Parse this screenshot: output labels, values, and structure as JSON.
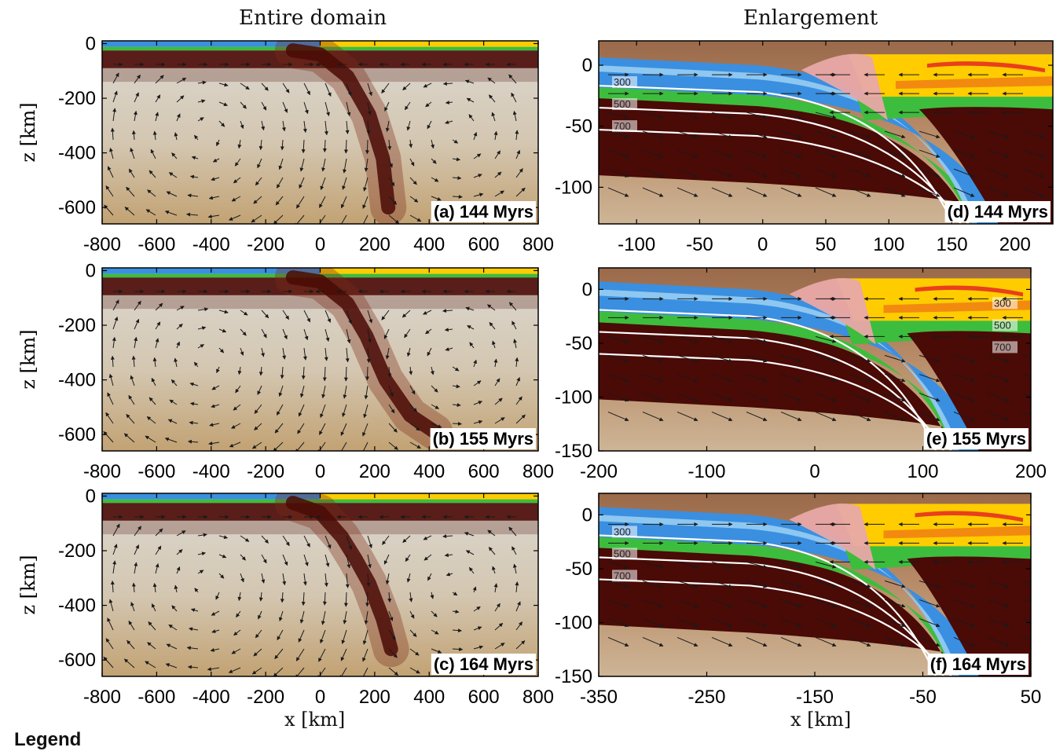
{
  "figure": {
    "col_titles": [
      "Entire domain",
      "Enlargement"
    ],
    "xlabel_left": "x [km]",
    "xlabel_right": "x [km]",
    "ylabel": "z [km]",
    "legend_heading": "Legend"
  },
  "colors": {
    "mantle_light": "#d8d4cc",
    "mantle_mid": "#c9b08a",
    "mantle_dark": "#a87a55",
    "lithosphere": "#4a0a06",
    "crust_blue": "#3a8fe0",
    "crust_lightblue": "#8ec7f0",
    "crust_darkblue": "#143d9c",
    "sediment_green": "#3dbd3d",
    "upper_yellow": "#ffcc00",
    "upper_orange": "#f28a10",
    "upper_red": "#e8401c",
    "melange_pink": "#e8a8a8",
    "isotherm": "#ffffff",
    "arrow": "#1a1a1a"
  },
  "chart_data": [
    {
      "type": "heatmap",
      "panel": "left",
      "label": "(a) 144 Myrs",
      "xlim": [
        -800,
        800
      ],
      "ylim": [
        -660,
        10
      ],
      "xticks": [
        -800,
        -600,
        -400,
        -200,
        0,
        200,
        400,
        600,
        800
      ],
      "yticks": [
        0,
        -200,
        -400,
        -600
      ],
      "slab": [
        [
          -100,
          -25
        ],
        [
          0,
          -40
        ],
        [
          100,
          -120
        ],
        [
          180,
          -260
        ],
        [
          230,
          -420
        ],
        [
          250,
          -600
        ]
      ]
    },
    {
      "type": "heatmap",
      "panel": "left",
      "label": "(b) 155 Myrs",
      "xlim": [
        -800,
        800
      ],
      "ylim": [
        -660,
        10
      ],
      "xticks": [
        -800,
        -600,
        -400,
        -200,
        0,
        200,
        400,
        600,
        800
      ],
      "yticks": [
        0,
        -200,
        -400,
        -600
      ],
      "slab": [
        [
          -100,
          -25
        ],
        [
          0,
          -40
        ],
        [
          100,
          -120
        ],
        [
          170,
          -240
        ],
        [
          240,
          -400
        ],
        [
          330,
          -530
        ],
        [
          420,
          -590
        ]
      ]
    },
    {
      "type": "heatmap",
      "panel": "left",
      "label": "(c) 164 Myrs",
      "xlim": [
        -800,
        800
      ],
      "ylim": [
        -660,
        10
      ],
      "xticks": [
        -800,
        -600,
        -400,
        -200,
        0,
        200,
        400,
        600,
        800
      ],
      "yticks": [
        0,
        -200,
        -400,
        -600
      ],
      "slab": [
        [
          -100,
          -25
        ],
        [
          0,
          -60
        ],
        [
          80,
          -150
        ],
        [
          130,
          -230
        ],
        [
          180,
          -320
        ],
        [
          230,
          -450
        ],
        [
          260,
          -560
        ]
      ]
    },
    {
      "type": "heatmap",
      "panel": "right",
      "label": "(d) 144 Myrs",
      "xlim": [
        -130,
        230
      ],
      "ylim": [
        -130,
        20
      ],
      "xticks": [
        -100,
        -50,
        0,
        50,
        100,
        150,
        200
      ],
      "yticks": [
        0,
        -50,
        -100
      ],
      "isotherm_labels": [
        "300",
        "500",
        "700"
      ]
    },
    {
      "type": "heatmap",
      "panel": "right",
      "label": "(e) 155 Myrs",
      "xlim": [
        -200,
        200
      ],
      "ylim": [
        -150,
        20
      ],
      "xticks": [
        -200,
        -100,
        0,
        100,
        200
      ],
      "yticks": [
        0,
        -50,
        -100,
        -150
      ],
      "isotherm_labels": [
        "300",
        "500",
        "700"
      ]
    },
    {
      "type": "heatmap",
      "panel": "right",
      "label": "(f) 164 Myrs",
      "xlim": [
        -350,
        50
      ],
      "ylim": [
        -150,
        20
      ],
      "xticks": [
        -350,
        -250,
        -150,
        -50,
        50
      ],
      "yticks": [
        0,
        -50,
        -100,
        -150
      ],
      "isotherm_labels": [
        "300",
        "500",
        "700"
      ]
    }
  ]
}
